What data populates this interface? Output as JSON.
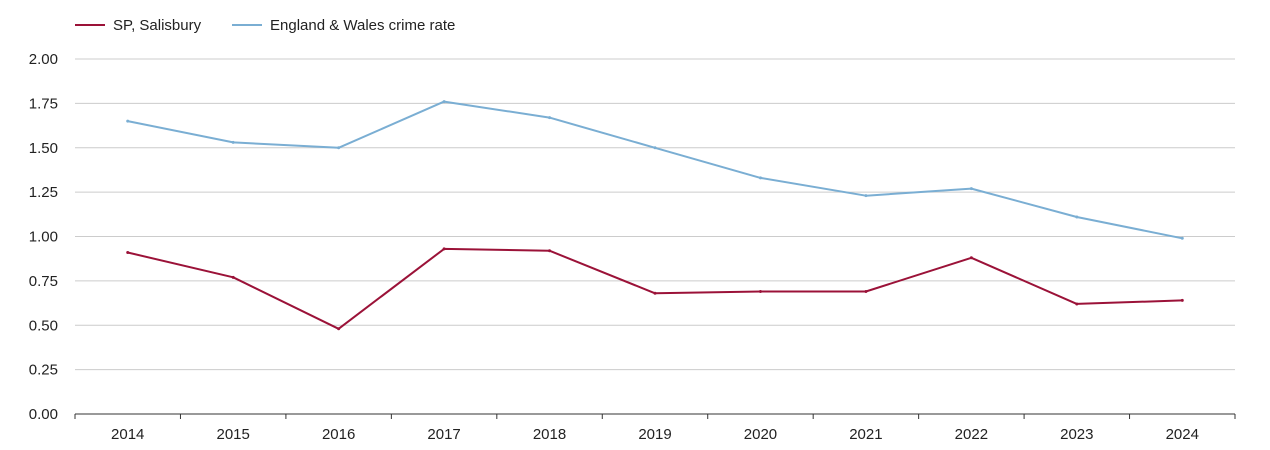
{
  "chart_data": {
    "type": "line",
    "title": "",
    "xlabel": "",
    "ylabel": "",
    "legend_position": "top-left",
    "grid": true,
    "ylim": [
      0,
      2
    ],
    "y_ticks": [
      "0.00",
      "0.25",
      "0.50",
      "0.75",
      "1.00",
      "1.25",
      "1.50",
      "1.75",
      "2.00"
    ],
    "categories": [
      "2014",
      "2015",
      "2016",
      "2017",
      "2018",
      "2019",
      "2020",
      "2021",
      "2022",
      "2023",
      "2024"
    ],
    "series": [
      {
        "name": "SP, Salisbury",
        "color": "#9b1238",
        "values": [
          0.91,
          0.77,
          0.48,
          0.93,
          0.92,
          0.68,
          0.69,
          0.69,
          0.88,
          0.62,
          0.64
        ]
      },
      {
        "name": "England & Wales crime rate",
        "color": "#7aaed3",
        "values": [
          1.65,
          1.53,
          1.5,
          1.76,
          1.67,
          1.5,
          1.33,
          1.23,
          1.27,
          1.11,
          0.99
        ]
      }
    ]
  }
}
